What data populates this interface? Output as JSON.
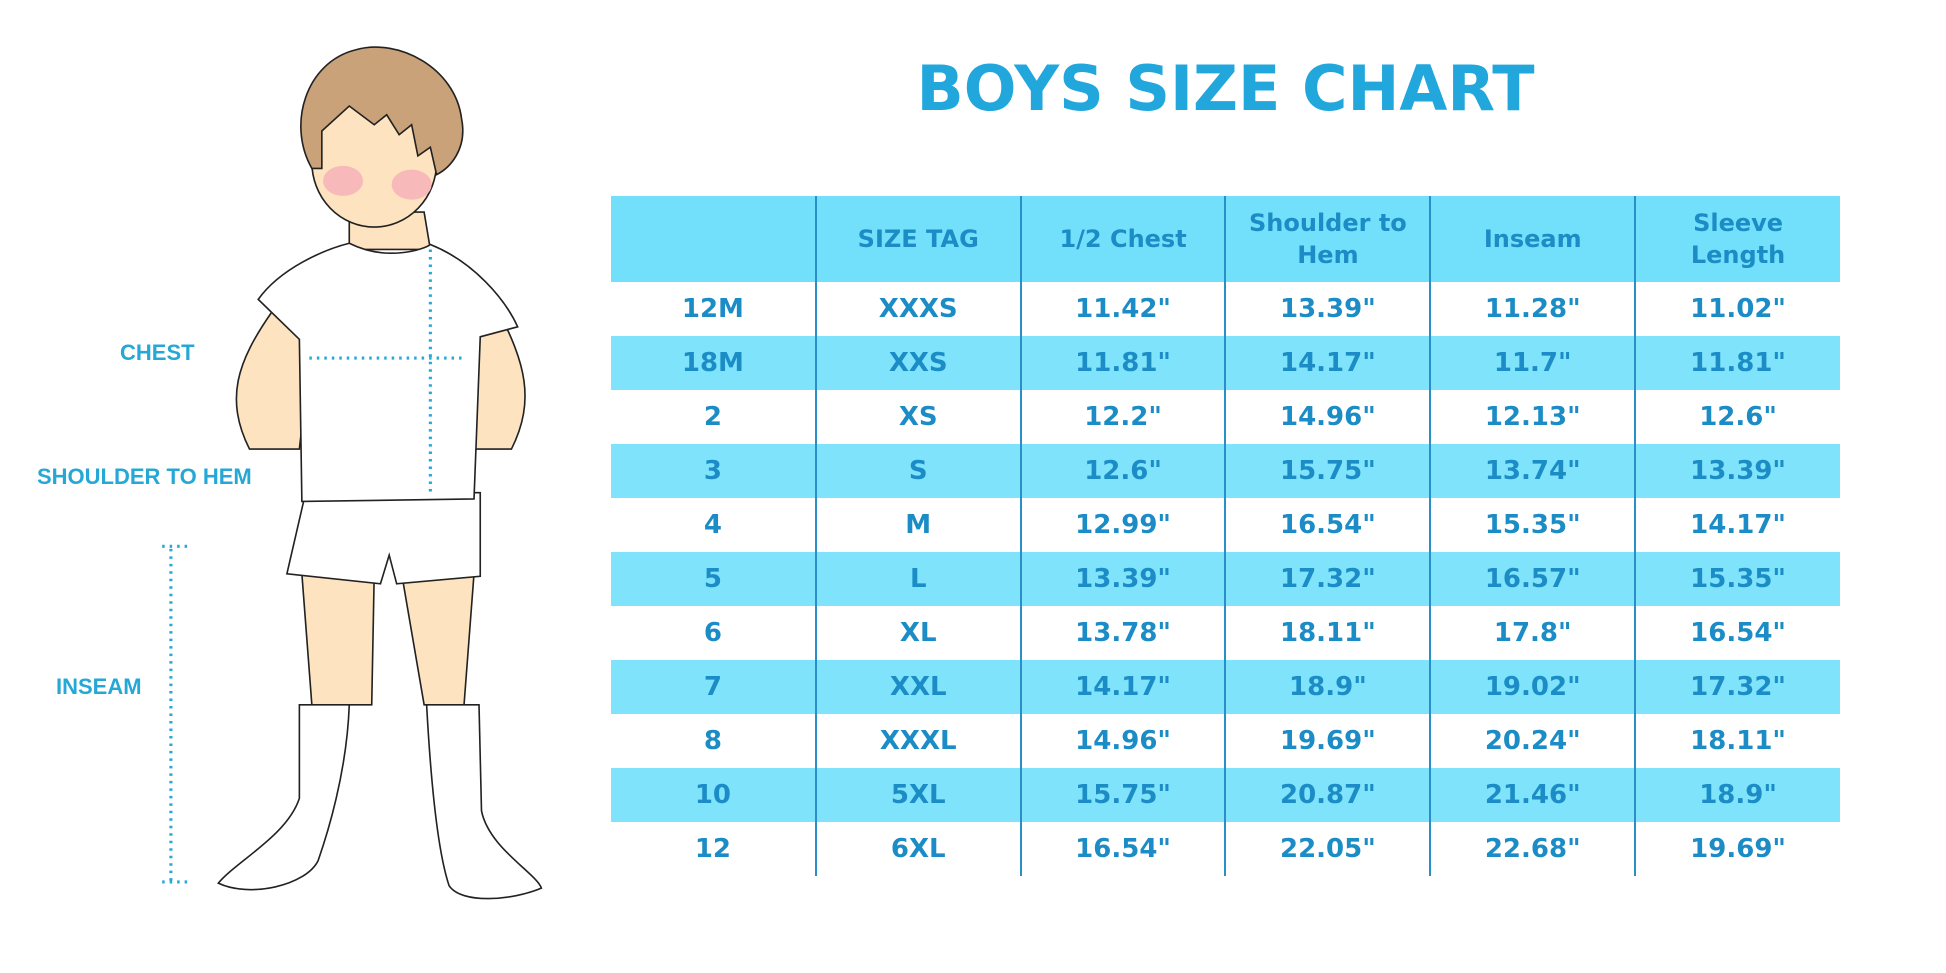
{
  "header": {
    "title": "BOYS SIZE CHART"
  },
  "figure": {
    "labels": [
      "CHEST",
      "SHOULDER TO HEM",
      "INSEAM"
    ]
  },
  "table": {
    "columns": [
      "SIZE TAG",
      "1/2 Chest",
      "Shoulder to Hem",
      "Inseam",
      "Sleeve Length"
    ],
    "rows": [
      [
        "12M",
        "XXXS",
        "11.42\"",
        "13.39\"",
        "11.28\"",
        "11.02\""
      ],
      [
        "18M",
        "XXS",
        "11.81\"",
        "14.17\"",
        "11.7\"",
        "11.81\""
      ],
      [
        "2",
        "XS",
        "12.2\"",
        "14.96\"",
        "12.13\"",
        "12.6\""
      ],
      [
        "3",
        "S",
        "12.6\"",
        "15.75\"",
        "13.74\"",
        "13.39\""
      ],
      [
        "4",
        "M",
        "12.99\"",
        "16.54\"",
        "15.35\"",
        "14.17\""
      ],
      [
        "5",
        "L",
        "13.39\"",
        "17.32\"",
        "16.57\"",
        "15.35\""
      ],
      [
        "6",
        "XL",
        "13.78\"",
        "18.11\"",
        "17.8\"",
        "16.54\""
      ],
      [
        "7",
        "XXL",
        "14.17\"",
        "18.9\"",
        "19.02\"",
        "17.32\""
      ],
      [
        "8",
        "XXXL",
        "14.96\"",
        "19.69\"",
        "20.24\"",
        "18.11\""
      ],
      [
        "10",
        "5XL",
        "15.75\"",
        "20.87\"",
        "21.46\"",
        "18.9\""
      ],
      [
        "12",
        "6XL",
        "16.54\"",
        "22.05\"",
        "22.68\"",
        "19.69\""
      ]
    ]
  }
}
